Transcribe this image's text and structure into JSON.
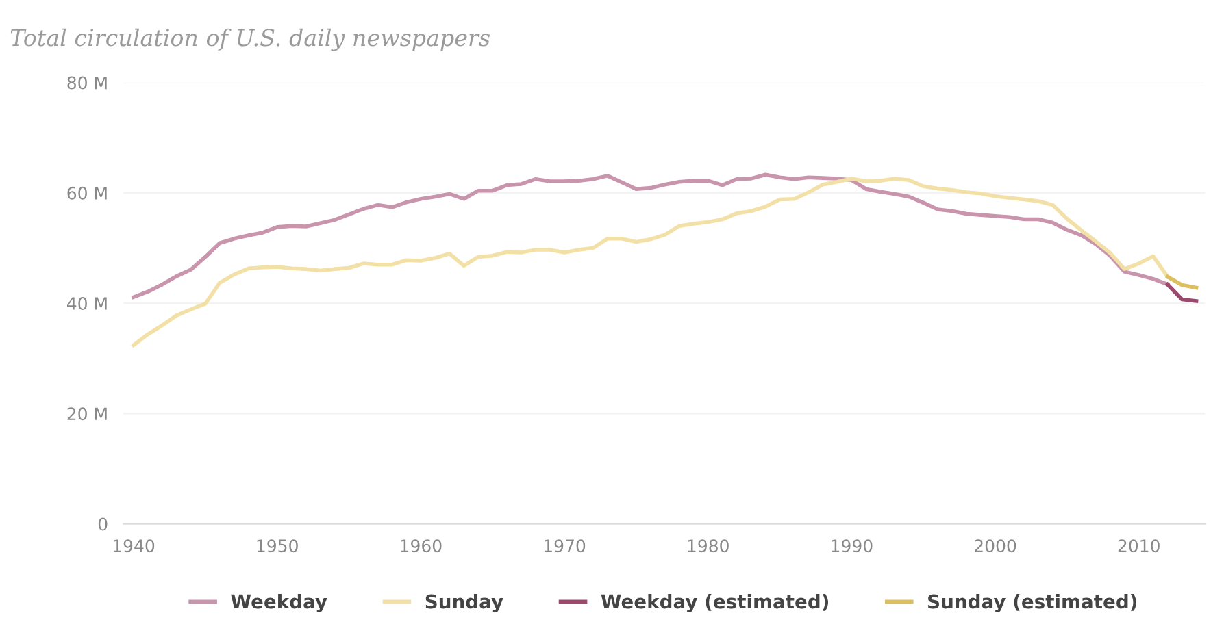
{
  "chart_data": {
    "type": "line",
    "title": "Total circulation of U.S. daily newspapers",
    "xlim": [
      1939.3,
      2014.6
    ],
    "xticks": [
      1940,
      1950,
      1960,
      1970,
      1980,
      1990,
      2000,
      2010
    ],
    "ylim": [
      0,
      80
    ],
    "yticks": [
      0,
      {
        "value": 20,
        "label": "20 M"
      },
      {
        "value": 40,
        "label": "40 M"
      },
      {
        "value": 60,
        "label": "60 M"
      },
      {
        "value": 80,
        "label": "80 M"
      }
    ],
    "grid": "y",
    "legend": "bottom",
    "marker": "none",
    "line_style": "solid",
    "series": [
      {
        "name": "Weekday",
        "color": "#c995ad",
        "x": [
          1940,
          1941,
          1942,
          1943,
          1944,
          1945,
          1946,
          1947,
          1948,
          1949,
          1950,
          1951,
          1952,
          1953,
          1954,
          1955,
          1956,
          1957,
          1958,
          1959,
          1960,
          1961,
          1962,
          1963,
          1964,
          1965,
          1966,
          1967,
          1968,
          1969,
          1970,
          1971,
          1972,
          1973,
          1974,
          1975,
          1976,
          1977,
          1978,
          1979,
          1980,
          1981,
          1982,
          1983,
          1984,
          1985,
          1986,
          1987,
          1988,
          1989,
          1990,
          1991,
          1992,
          1993,
          1994,
          1995,
          1996,
          1997,
          1998,
          1999,
          2000,
          2001,
          2002,
          2003,
          2004,
          2005,
          2006,
          2007,
          2008,
          2009,
          2010,
          2011,
          2012
        ],
        "values": [
          41.1,
          42.1,
          43.4,
          44.9,
          46.1,
          48.4,
          50.9,
          51.7,
          52.3,
          52.8,
          53.8,
          54.0,
          53.9,
          54.5,
          55.1,
          56.1,
          57.1,
          57.8,
          57.4,
          58.3,
          58.9,
          59.3,
          59.8,
          58.9,
          60.4,
          60.4,
          61.4,
          61.6,
          62.5,
          62.1,
          62.1,
          62.2,
          62.5,
          63.1,
          61.9,
          60.7,
          60.9,
          61.5,
          62.0,
          62.2,
          62.2,
          61.4,
          62.5,
          62.6,
          63.3,
          62.8,
          62.5,
          62.8,
          62.7,
          62.6,
          62.3,
          60.7,
          60.2,
          59.8,
          59.3,
          58.2,
          57.0,
          56.7,
          56.2,
          56.0,
          55.8,
          55.6,
          55.2,
          55.2,
          54.6,
          53.3,
          52.3,
          50.7,
          48.6,
          45.7,
          45.1,
          44.4,
          43.4
        ]
      },
      {
        "name": "Sunday",
        "color": "#f2e0a6",
        "x": [
          1940,
          1941,
          1942,
          1943,
          1944,
          1945,
          1946,
          1947,
          1948,
          1949,
          1950,
          1951,
          1952,
          1953,
          1954,
          1955,
          1956,
          1957,
          1958,
          1959,
          1960,
          1961,
          1962,
          1963,
          1964,
          1965,
          1966,
          1967,
          1968,
          1969,
          1970,
          1971,
          1972,
          1973,
          1974,
          1975,
          1976,
          1977,
          1978,
          1979,
          1980,
          1981,
          1982,
          1983,
          1984,
          1985,
          1986,
          1987,
          1988,
          1989,
          1990,
          1991,
          1992,
          1993,
          1994,
          1995,
          1996,
          1997,
          1998,
          1999,
          2000,
          2001,
          2002,
          2003,
          2004,
          2005,
          2006,
          2007,
          2008,
          2009,
          2010,
          2011,
          2012
        ],
        "values": [
          32.4,
          34.4,
          36.0,
          37.8,
          38.9,
          39.9,
          43.7,
          45.2,
          46.3,
          46.5,
          46.6,
          46.3,
          46.2,
          45.9,
          46.2,
          46.4,
          47.2,
          47.0,
          47.0,
          47.8,
          47.7,
          48.2,
          49.0,
          46.8,
          48.4,
          48.6,
          49.3,
          49.2,
          49.7,
          49.7,
          49.2,
          49.7,
          50.0,
          51.7,
          51.7,
          51.1,
          51.6,
          52.4,
          54.0,
          54.4,
          54.7,
          55.2,
          56.3,
          56.7,
          57.5,
          58.8,
          58.9,
          60.1,
          61.5,
          62.0,
          62.6,
          62.1,
          62.2,
          62.6,
          62.3,
          61.2,
          60.8,
          60.5,
          60.1,
          59.9,
          59.4,
          59.1,
          58.8,
          58.5,
          57.8,
          55.3,
          53.2,
          51.2,
          49.1,
          46.2,
          47.2,
          48.5,
          44.8
        ]
      },
      {
        "name": "Weekday (estimated)",
        "color": "#9b4a6e",
        "x": [
          2012,
          2013,
          2014
        ],
        "values": [
          43.4,
          40.7,
          40.4
        ]
      },
      {
        "name": "Sunday (estimated)",
        "color": "#dcc060",
        "x": [
          2012,
          2013,
          2014
        ],
        "values": [
          44.8,
          43.3,
          42.8
        ]
      }
    ]
  }
}
